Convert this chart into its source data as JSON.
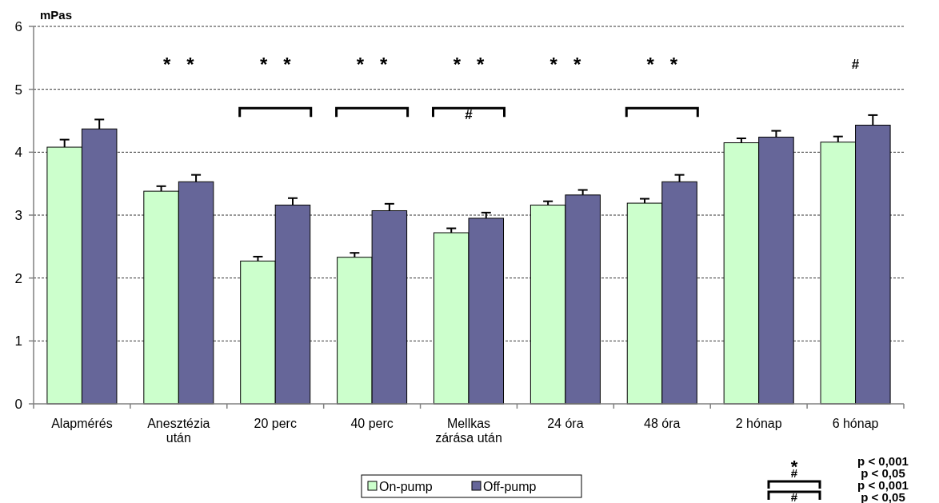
{
  "chart_data": {
    "type": "bar",
    "ylabel": "mPas",
    "categories": [
      "Alapmérés",
      "Anesztézia után",
      "20 perc",
      "40 perc",
      "Mellkas zárása után",
      "24 óra",
      "48 óra",
      "2 hónap",
      "6 hónap"
    ],
    "series": [
      {
        "name": "On-pump",
        "color": "#ccffcc",
        "values": [
          4.08,
          3.38,
          2.27,
          2.33,
          2.72,
          3.16,
          3.19,
          4.15,
          4.16
        ],
        "errors": [
          0.12,
          0.08,
          0.07,
          0.07,
          0.07,
          0.06,
          0.07,
          0.07,
          0.09
        ]
      },
      {
        "name": "Off-pump",
        "color": "#666699",
        "values": [
          4.37,
          3.53,
          3.16,
          3.07,
          2.95,
          3.32,
          3.53,
          4.24,
          4.43
        ],
        "errors": [
          0.15,
          0.11,
          0.11,
          0.11,
          0.09,
          0.08,
          0.11,
          0.1,
          0.16
        ]
      }
    ],
    "ylim": [
      0,
      6
    ],
    "yticks": [
      0,
      1,
      2,
      3,
      4,
      5,
      6
    ],
    "grid": "y",
    "legend": "bottom",
    "annotations": [
      "* *",
      "* *",
      "* *",
      "* *",
      "* *",
      "* *",
      "#",
      "#",
      "*",
      "p < 0,001",
      "#",
      "p < 0,05",
      "p < 0,001",
      "#",
      "p < 0,05"
    ]
  }
}
